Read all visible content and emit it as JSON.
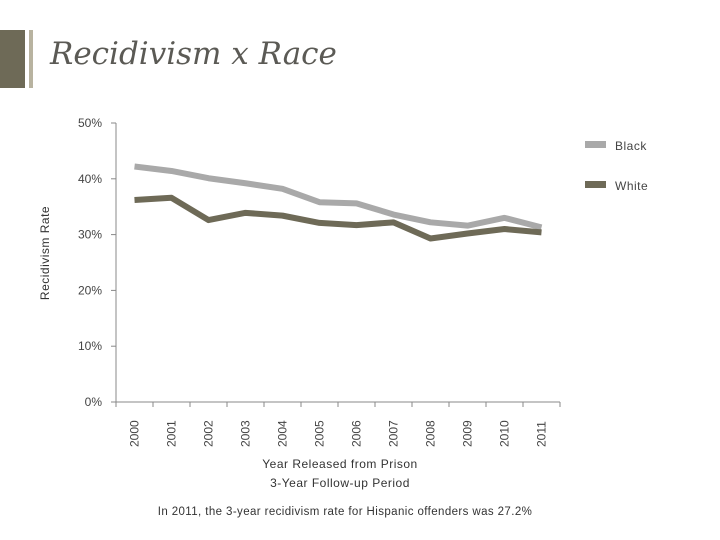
{
  "title": "Recidivism x Race",
  "note": "In 2011, the 3-year recidivism rate for Hispanic offenders was 27.2%",
  "colors": {
    "Black": "#a9a9a9",
    "White": "#6e6a57"
  },
  "chart_data": {
    "type": "line",
    "title": "",
    "xlabel": "Year Released from Prison",
    "xlabel2": "3-Year Follow-up Period",
    "ylabel": "Recidivism Rate",
    "ylim": [
      0,
      50
    ],
    "yticks": [
      "0%",
      "10%",
      "20%",
      "30%",
      "40%",
      "50%"
    ],
    "x": [
      "2000",
      "2001",
      "2002",
      "2003",
      "2004",
      "2005",
      "2006",
      "2007",
      "2008",
      "2009",
      "2010",
      "2011"
    ],
    "series": [
      {
        "name": "Black",
        "values": [
          42.2,
          41.4,
          40.1,
          39.2,
          38.2,
          35.8,
          35.6,
          33.6,
          32.2,
          31.6,
          33.0,
          31.3
        ]
      },
      {
        "name": "White",
        "values": [
          36.2,
          36.6,
          32.6,
          33.9,
          33.4,
          32.1,
          31.7,
          32.2,
          29.3,
          30.2,
          31.0,
          30.4
        ]
      }
    ],
    "legend_position": "right",
    "grid": false
  }
}
